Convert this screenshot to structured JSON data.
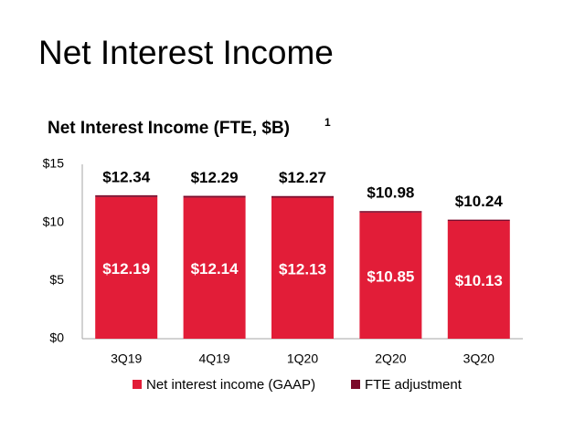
{
  "header": {
    "title": "Net Interest Income"
  },
  "chart_data": {
    "type": "stacked_bar",
    "title": "Net Interest Income (FTE, $B)",
    "title_note": "1",
    "categories": [
      "3Q19",
      "4Q19",
      "1Q20",
      "2Q20",
      "3Q20"
    ],
    "series": [
      {
        "name": "Net interest income (GAAP)",
        "color": "#e21d38",
        "values": [
          12.19,
          12.14,
          12.13,
          10.85,
          10.13
        ],
        "value_labels": [
          "$12.19",
          "$12.14",
          "$12.13",
          "$10.85",
          "$10.13"
        ]
      },
      {
        "name": "FTE adjustment",
        "color": "#7b0a2a",
        "values": [
          0.15,
          0.15,
          0.14,
          0.13,
          0.11
        ]
      }
    ],
    "totals": [
      12.34,
      12.29,
      12.27,
      10.98,
      10.24
    ],
    "total_labels": [
      "$12.34",
      "$12.29",
      "$12.27",
      "$10.98",
      "$10.24"
    ],
    "ylim": [
      0,
      15
    ],
    "yticks": [
      {
        "value": 0,
        "label": "$0"
      },
      {
        "value": 5,
        "label": "$5"
      },
      {
        "value": 10,
        "label": "$10"
      },
      {
        "value": 15,
        "label": "$15"
      }
    ],
    "grid": false,
    "legend": "bottom"
  }
}
